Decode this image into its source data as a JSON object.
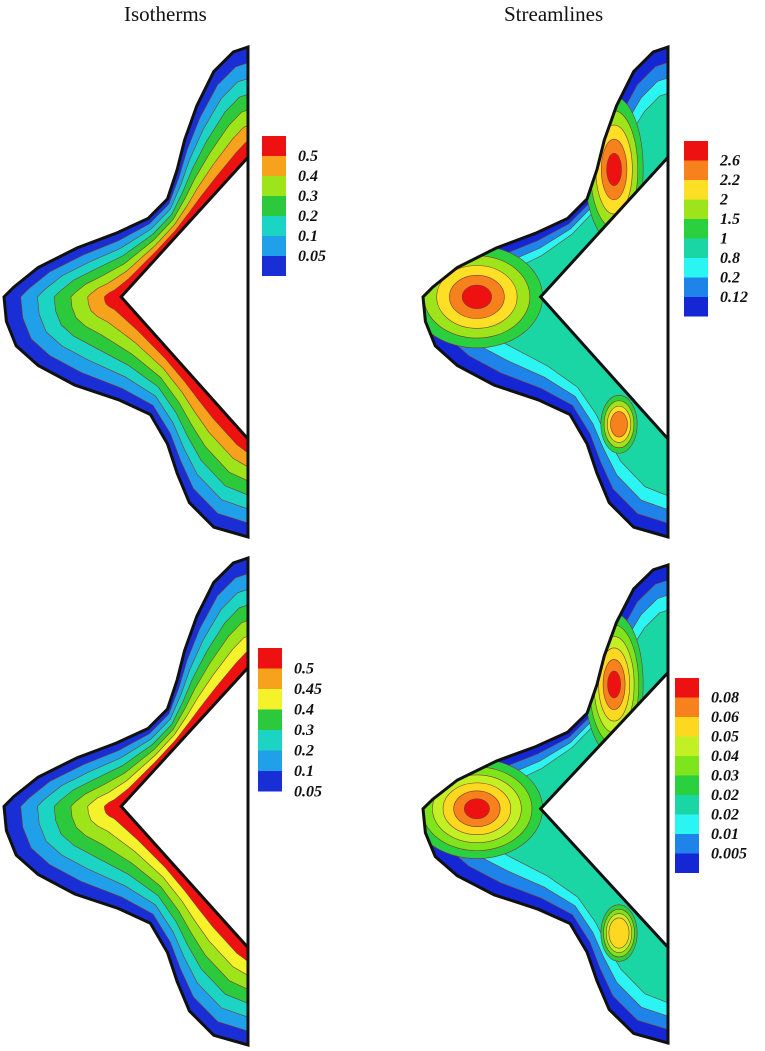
{
  "titles": {
    "left": "Isotherms",
    "right": "Streamlines"
  },
  "panels": [
    {
      "id": "isotherms-top",
      "legend": {
        "labels": [
          "0.5",
          "0.4",
          "0.3",
          "0.2",
          "0.1",
          "0.05"
        ],
        "colors": [
          "#ee1111",
          "#f7a21c",
          "#9ee41b",
          "#2cc93c",
          "#1cd4c4",
          "#21a0ea",
          "#1a2ed6"
        ]
      },
      "bands": [
        "#1a2ed6",
        "#21a0ea",
        "#1cd4c4",
        "#2cc93c",
        "#9ee41b",
        "#f7a21c",
        "#ee1111"
      ],
      "mode": "hot-near-wedge"
    },
    {
      "id": "streamlines-top",
      "legend": {
        "labels": [
          "2.6",
          "2.2",
          "2",
          "1.5",
          "1",
          "0.8",
          "0.2",
          "0.12"
        ],
        "colors": [
          "#ee1111",
          "#f7811d",
          "#fde026",
          "#9ee41b",
          "#2bd03e",
          "#19d6a4",
          "#2af5f2",
          "#1f84ea",
          "#1527d4"
        ]
      },
      "bands": [
        "#1527d4",
        "#1f84ea",
        "#2af5f2",
        "#19d6a4",
        "#2bd03e",
        "#9ee41b",
        "#fde026",
        "#f7811d",
        "#ee1111"
      ],
      "mode": "two-vortex"
    },
    {
      "id": "isotherms-bottom",
      "legend": {
        "labels": [
          "0.5",
          "0.45",
          "0.4",
          "0.3",
          "0.2",
          "0.1",
          "0.05"
        ],
        "colors": [
          "#ee1111",
          "#f7a21c",
          "#f4f22a",
          "#2cc93c",
          "#1cd4c4",
          "#21a0ea",
          "#1a2ed6"
        ]
      },
      "bands": [
        "#1a2ed6",
        "#21a0ea",
        "#1cd4c4",
        "#2cc93c",
        "#9ee41b",
        "#f4f22a",
        "#ee1111"
      ],
      "mode": "hot-near-wedge"
    },
    {
      "id": "streamlines-bottom",
      "legend": {
        "labels": [
          "0.08",
          "0.06",
          "0.05",
          "0.04",
          "0.03",
          "0.02",
          "0.02",
          "0.01",
          "0.005"
        ],
        "colors": [
          "#ee1111",
          "#f7811d",
          "#fdd820",
          "#c2f025",
          "#7ee51d",
          "#2bd03e",
          "#19d6a4",
          "#2af5f2",
          "#1f84ea",
          "#1527d4"
        ]
      },
      "bands": [
        "#1527d4",
        "#1f84ea",
        "#2af5f2",
        "#19d6a4",
        "#2bd03e",
        "#7ee51d",
        "#c2f025",
        "#fdd820",
        "#f7811d",
        "#ee1111"
      ],
      "mode": "two-vortex"
    }
  ]
}
